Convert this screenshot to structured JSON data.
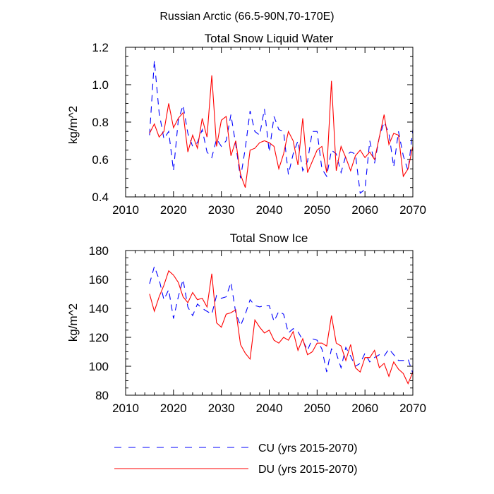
{
  "figure_title": "Russian Arctic (66.5-90N,70-170E)",
  "legend": {
    "placement": "bottom-left",
    "items": [
      {
        "label": "CU (yrs 2015-2070)",
        "color": "#0000ff",
        "style": "dashed"
      },
      {
        "label": "DU (yrs 2015-2070)",
        "color": "#ff0000",
        "style": "solid"
      }
    ]
  },
  "chart_data": [
    {
      "type": "line",
      "title": "Total Snow Liquid Water",
      "xlabel": "",
      "ylabel": "kg/m^2",
      "xlim": [
        2010,
        2070
      ],
      "ylim": [
        0.4,
        1.2
      ],
      "xticks": [
        2010,
        2020,
        2030,
        2040,
        2050,
        2060,
        2070
      ],
      "xtick_labels": [
        "2010",
        "2020",
        "2030",
        "2040",
        "2050",
        "2060",
        "2070"
      ],
      "yticks": [
        0.4,
        0.6,
        0.8,
        1.0,
        1.2
      ],
      "ytick_labels": [
        "0.4",
        "0.6",
        "0.8",
        "1.0",
        "1.2"
      ],
      "grid": false,
      "x": [
        2015,
        2016,
        2017,
        2018,
        2019,
        2020,
        2021,
        2022,
        2023,
        2024,
        2025,
        2026,
        2027,
        2028,
        2029,
        2030,
        2031,
        2032,
        2033,
        2034,
        2035,
        2036,
        2037,
        2038,
        2039,
        2040,
        2041,
        2042,
        2043,
        2044,
        2045,
        2046,
        2047,
        2048,
        2049,
        2050,
        2051,
        2052,
        2053,
        2054,
        2055,
        2056,
        2057,
        2058,
        2059,
        2060,
        2061,
        2062,
        2063,
        2064,
        2065,
        2066,
        2067,
        2068,
        2069,
        2070
      ],
      "series": [
        {
          "name": "CU (yrs 2015-2070)",
          "color": "#0000ff",
          "style": "dashed",
          "values": [
            0.73,
            1.13,
            0.85,
            0.71,
            0.75,
            0.54,
            0.81,
            0.89,
            0.74,
            0.67,
            0.69,
            0.76,
            0.64,
            0.61,
            0.71,
            0.67,
            0.7,
            0.84,
            0.68,
            0.5,
            0.66,
            0.86,
            0.75,
            0.73,
            0.87,
            0.64,
            0.83,
            0.76,
            0.75,
            0.52,
            0.63,
            0.7,
            0.54,
            0.59,
            0.75,
            0.75,
            0.55,
            0.51,
            0.65,
            0.63,
            0.53,
            0.62,
            0.64,
            0.63,
            0.42,
            0.44,
            0.7,
            0.58,
            0.72,
            0.8,
            0.74,
            0.56,
            0.75,
            0.62,
            0.54,
            0.76
          ]
        },
        {
          "name": "DU (yrs 2015-2070)",
          "color": "#ff0000",
          "style": "solid",
          "values": [
            0.74,
            0.79,
            0.72,
            0.75,
            0.9,
            0.77,
            0.82,
            0.85,
            0.64,
            0.73,
            0.66,
            0.82,
            0.72,
            1.05,
            0.67,
            0.81,
            0.83,
            0.62,
            0.7,
            0.52,
            0.45,
            0.65,
            0.66,
            0.69,
            0.7,
            0.69,
            0.67,
            0.55,
            0.63,
            0.75,
            0.7,
            0.57,
            0.82,
            0.53,
            0.59,
            0.65,
            0.67,
            0.53,
            1.02,
            0.54,
            0.67,
            0.61,
            0.54,
            0.62,
            0.65,
            0.61,
            0.64,
            0.6,
            0.72,
            0.84,
            0.68,
            0.74,
            0.73,
            0.51,
            0.55,
            0.67
          ]
        }
      ]
    },
    {
      "type": "line",
      "title": "Total Snow Ice",
      "xlabel": "",
      "ylabel": "kg/m^2",
      "xlim": [
        2010,
        2070
      ],
      "ylim": [
        80,
        180
      ],
      "xticks": [
        2010,
        2020,
        2030,
        2040,
        2050,
        2060,
        2070
      ],
      "xtick_labels": [
        "2010",
        "2020",
        "2030",
        "2040",
        "2050",
        "2060",
        "2070"
      ],
      "yticks": [
        80,
        100,
        120,
        140,
        160,
        180
      ],
      "ytick_labels": [
        "80",
        "100",
        "120",
        "140",
        "160",
        "180"
      ],
      "grid": false,
      "x": [
        2015,
        2016,
        2017,
        2018,
        2019,
        2020,
        2021,
        2022,
        2023,
        2024,
        2025,
        2026,
        2027,
        2028,
        2029,
        2030,
        2031,
        2032,
        2033,
        2034,
        2035,
        2036,
        2037,
        2038,
        2039,
        2040,
        2041,
        2042,
        2043,
        2044,
        2045,
        2046,
        2047,
        2048,
        2049,
        2050,
        2051,
        2052,
        2053,
        2054,
        2055,
        2056,
        2057,
        2058,
        2059,
        2060,
        2061,
        2062,
        2063,
        2064,
        2065,
        2066,
        2067,
        2068,
        2069,
        2070
      ],
      "series": [
        {
          "name": "CU (yrs 2015-2070)",
          "color": "#0000ff",
          "style": "dashed",
          "values": [
            157,
            169,
            160,
            146,
            153,
            133,
            148,
            160,
            141,
            135,
            143,
            140,
            138,
            136,
            149,
            147,
            148,
            158,
            137,
            128,
            136,
            146,
            142,
            141,
            142,
            142,
            131,
            138,
            136,
            123,
            126,
            124,
            118,
            111,
            119,
            118,
            112,
            96,
            112,
            109,
            99,
            113,
            107,
            100,
            102,
            109,
            103,
            106,
            108,
            107,
            112,
            108,
            104,
            104,
            105,
            95
          ]
        },
        {
          "name": "DU (yrs 2015-2070)",
          "color": "#ff0000",
          "style": "solid",
          "values": [
            150,
            138,
            148,
            156,
            166,
            163,
            158,
            148,
            144,
            151,
            146,
            147,
            141,
            164,
            130,
            127,
            136,
            137,
            139,
            115,
            109,
            105,
            132,
            127,
            123,
            125,
            118,
            116,
            120,
            118,
            124,
            111,
            119,
            108,
            110,
            116,
            116,
            114,
            135,
            116,
            114,
            104,
            115,
            99,
            96,
            106,
            106,
            111,
            99,
            102,
            93,
            103,
            98,
            95,
            88,
            96
          ]
        }
      ]
    }
  ]
}
